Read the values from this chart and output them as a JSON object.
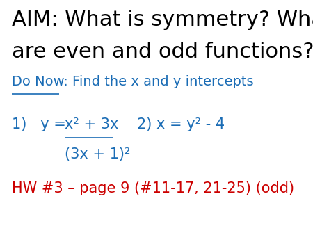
{
  "background_color": "#ffffff",
  "title_line1": "AIM: What is symmetry? What",
  "title_line2": "are even and odd functions?",
  "title_color": "#000000",
  "title_fontsize": 22,
  "donow_label": "Do Now",
  "donow_rest": " : Find the x and y intercepts",
  "donow_color": "#1a6cb5",
  "donow_fontsize": 14,
  "eq1_prefix": "1)   y = ",
  "eq1_underlined": "x² + 3x",
  "eq1_color": "#1a6cb5",
  "eq1_fontsize": 15,
  "eq1b": "(3x + 1)²",
  "eq2": "2) x = y² - 4",
  "eq2_color": "#1a6cb5",
  "eq2_fontsize": 15,
  "hw": "HW #3 – page 9 (#11-17, 21-25) (odd)",
  "hw_color": "#cc0000",
  "hw_fontsize": 15
}
